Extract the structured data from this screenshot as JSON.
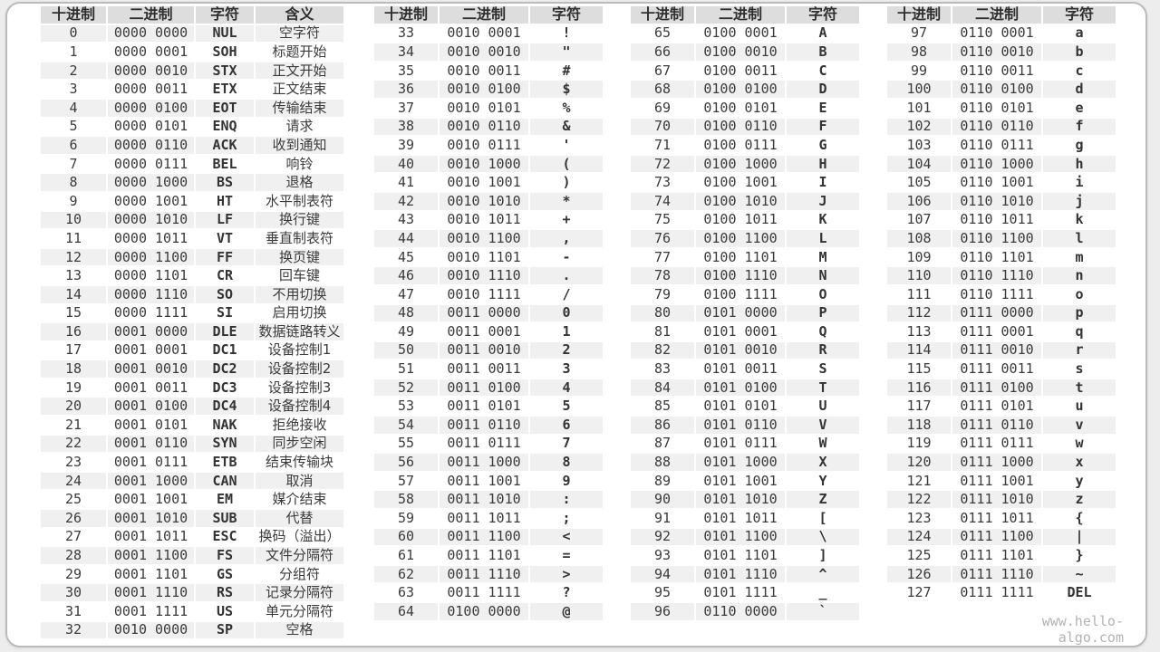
{
  "page": {
    "watermark": "www.hello-algo.com"
  },
  "colors": {
    "outer_background": "#ecedec",
    "panel_background": "#ffffff",
    "panel_border": "#b9bcba",
    "header_background": "#dcdddc",
    "stripe_background": "#f0f0f0",
    "text": "#3b3b3b",
    "watermark_text": "#b3b3b3"
  },
  "chart_data": [
    {
      "type": "table",
      "title": "ASCII 控制字符 0-32",
      "columns": [
        "十进制",
        "二进制",
        "字符",
        "含义"
      ],
      "rows": [
        [
          "0",
          "0000 0000",
          "NUL",
          "空字符"
        ],
        [
          "1",
          "0000 0001",
          "SOH",
          "标题开始"
        ],
        [
          "2",
          "0000 0010",
          "STX",
          "正文开始"
        ],
        [
          "3",
          "0000 0011",
          "ETX",
          "正文结束"
        ],
        [
          "4",
          "0000 0100",
          "EOT",
          "传输结束"
        ],
        [
          "5",
          "0000 0101",
          "ENQ",
          "请求"
        ],
        [
          "6",
          "0000 0110",
          "ACK",
          "收到通知"
        ],
        [
          "7",
          "0000 0111",
          "BEL",
          "响铃"
        ],
        [
          "8",
          "0000 1000",
          "BS",
          "退格"
        ],
        [
          "9",
          "0000 1001",
          "HT",
          "水平制表符"
        ],
        [
          "10",
          "0000 1010",
          "LF",
          "换行键"
        ],
        [
          "11",
          "0000 1011",
          "VT",
          "垂直制表符"
        ],
        [
          "12",
          "0000 1100",
          "FF",
          "换页键"
        ],
        [
          "13",
          "0000 1101",
          "CR",
          "回车键"
        ],
        [
          "14",
          "0000 1110",
          "SO",
          "不用切换"
        ],
        [
          "15",
          "0000 1111",
          "SI",
          "启用切换"
        ],
        [
          "16",
          "0001 0000",
          "DLE",
          "数据链路转义"
        ],
        [
          "17",
          "0001 0001",
          "DC1",
          "设备控制1"
        ],
        [
          "18",
          "0001 0010",
          "DC2",
          "设备控制2"
        ],
        [
          "19",
          "0001 0011",
          "DC3",
          "设备控制3"
        ],
        [
          "20",
          "0001 0100",
          "DC4",
          "设备控制4"
        ],
        [
          "21",
          "0001 0101",
          "NAK",
          "拒绝接收"
        ],
        [
          "22",
          "0001 0110",
          "SYN",
          "同步空闲"
        ],
        [
          "23",
          "0001 0111",
          "ETB",
          "结束传输块"
        ],
        [
          "24",
          "0001 1000",
          "CAN",
          "取消"
        ],
        [
          "25",
          "0001 1001",
          "EM",
          "媒介结束"
        ],
        [
          "26",
          "0001 1010",
          "SUB",
          "代替"
        ],
        [
          "27",
          "0001 1011",
          "ESC",
          "换码（溢出）"
        ],
        [
          "28",
          "0001 1100",
          "FS",
          "文件分隔符"
        ],
        [
          "29",
          "0001 1101",
          "GS",
          "分组符"
        ],
        [
          "30",
          "0001 1110",
          "RS",
          "记录分隔符"
        ],
        [
          "31",
          "0001 1111",
          "US",
          "单元分隔符"
        ],
        [
          "32",
          "0010 0000",
          "SP",
          "空格"
        ]
      ]
    },
    {
      "type": "table",
      "title": "ASCII 33-64",
      "columns": [
        "十进制",
        "二进制",
        "字符"
      ],
      "rows": [
        [
          "33",
          "0010 0001",
          "!"
        ],
        [
          "34",
          "0010 0010",
          "\""
        ],
        [
          "35",
          "0010 0011",
          "#"
        ],
        [
          "36",
          "0010 0100",
          "$"
        ],
        [
          "37",
          "0010 0101",
          "%"
        ],
        [
          "38",
          "0010 0110",
          "&"
        ],
        [
          "39",
          "0010 0111",
          "'"
        ],
        [
          "40",
          "0010 1000",
          "("
        ],
        [
          "41",
          "0010 1001",
          ")"
        ],
        [
          "42",
          "0010 1010",
          "*"
        ],
        [
          "43",
          "0010 1011",
          "+"
        ],
        [
          "44",
          "0010 1100",
          ","
        ],
        [
          "45",
          "0010 1101",
          "-"
        ],
        [
          "46",
          "0010 1110",
          "."
        ],
        [
          "47",
          "0010 1111",
          "/"
        ],
        [
          "48",
          "0011 0000",
          "0"
        ],
        [
          "49",
          "0011 0001",
          "1"
        ],
        [
          "50",
          "0011 0010",
          "2"
        ],
        [
          "51",
          "0011 0011",
          "3"
        ],
        [
          "52",
          "0011 0100",
          "4"
        ],
        [
          "53",
          "0011 0101",
          "5"
        ],
        [
          "54",
          "0011 0110",
          "6"
        ],
        [
          "55",
          "0011 0111",
          "7"
        ],
        [
          "56",
          "0011 1000",
          "8"
        ],
        [
          "57",
          "0011 1001",
          "9"
        ],
        [
          "58",
          "0011 1010",
          ":"
        ],
        [
          "59",
          "0011 1011",
          ";"
        ],
        [
          "60",
          "0011 1100",
          "<"
        ],
        [
          "61",
          "0011 1101",
          "="
        ],
        [
          "62",
          "0011 1110",
          ">"
        ],
        [
          "63",
          "0011 1111",
          "?"
        ],
        [
          "64",
          "0100 0000",
          "@"
        ]
      ]
    },
    {
      "type": "table",
      "title": "ASCII 65-96",
      "columns": [
        "十进制",
        "二进制",
        "字符"
      ],
      "rows": [
        [
          "65",
          "0100 0001",
          "A"
        ],
        [
          "66",
          "0100 0010",
          "B"
        ],
        [
          "67",
          "0100 0011",
          "C"
        ],
        [
          "68",
          "0100 0100",
          "D"
        ],
        [
          "69",
          "0100 0101",
          "E"
        ],
        [
          "70",
          "0100 0110",
          "F"
        ],
        [
          "71",
          "0100 0111",
          "G"
        ],
        [
          "72",
          "0100 1000",
          "H"
        ],
        [
          "73",
          "0100 1001",
          "I"
        ],
        [
          "74",
          "0100 1010",
          "J"
        ],
        [
          "75",
          "0100 1011",
          "K"
        ],
        [
          "76",
          "0100 1100",
          "L"
        ],
        [
          "77",
          "0100 1101",
          "M"
        ],
        [
          "78",
          "0100 1110",
          "N"
        ],
        [
          "79",
          "0100 1111",
          "O"
        ],
        [
          "80",
          "0101 0000",
          "P"
        ],
        [
          "81",
          "0101 0001",
          "Q"
        ],
        [
          "82",
          "0101 0010",
          "R"
        ],
        [
          "83",
          "0101 0011",
          "S"
        ],
        [
          "84",
          "0101 0100",
          "T"
        ],
        [
          "85",
          "0101 0101",
          "U"
        ],
        [
          "86",
          "0101 0110",
          "V"
        ],
        [
          "87",
          "0101 0111",
          "W"
        ],
        [
          "88",
          "0101 1000",
          "X"
        ],
        [
          "89",
          "0101 1001",
          "Y"
        ],
        [
          "90",
          "0101 1010",
          "Z"
        ],
        [
          "91",
          "0101 1011",
          "["
        ],
        [
          "92",
          "0101 1100",
          "\\"
        ],
        [
          "93",
          "0101 1101",
          "]"
        ],
        [
          "94",
          "0101 1110",
          "^"
        ],
        [
          "95",
          "0101 1111",
          "_"
        ],
        [
          "96",
          "0110 0000",
          "`"
        ]
      ]
    },
    {
      "type": "table",
      "title": "ASCII 97-127",
      "columns": [
        "十进制",
        "二进制",
        "字符"
      ],
      "rows": [
        [
          "97",
          "0110 0001",
          "a"
        ],
        [
          "98",
          "0110 0010",
          "b"
        ],
        [
          "99",
          "0110 0011",
          "c"
        ],
        [
          "100",
          "0110 0100",
          "d"
        ],
        [
          "101",
          "0110 0101",
          "e"
        ],
        [
          "102",
          "0110 0110",
          "f"
        ],
        [
          "103",
          "0110 0111",
          "g"
        ],
        [
          "104",
          "0110 1000",
          "h"
        ],
        [
          "105",
          "0110 1001",
          "i"
        ],
        [
          "106",
          "0110 1010",
          "j"
        ],
        [
          "107",
          "0110 1011",
          "k"
        ],
        [
          "108",
          "0110 1100",
          "l"
        ],
        [
          "109",
          "0110 1101",
          "m"
        ],
        [
          "110",
          "0110 1110",
          "n"
        ],
        [
          "111",
          "0110 1111",
          "o"
        ],
        [
          "112",
          "0111 0000",
          "p"
        ],
        [
          "113",
          "0111 0001",
          "q"
        ],
        [
          "114",
          "0111 0010",
          "r"
        ],
        [
          "115",
          "0111 0011",
          "s"
        ],
        [
          "116",
          "0111 0100",
          "t"
        ],
        [
          "117",
          "0111 0101",
          "u"
        ],
        [
          "118",
          "0111 0110",
          "v"
        ],
        [
          "119",
          "0111 0111",
          "w"
        ],
        [
          "120",
          "0111 1000",
          "x"
        ],
        [
          "121",
          "0111 1001",
          "y"
        ],
        [
          "122",
          "0111 1010",
          "z"
        ],
        [
          "123",
          "0111 1011",
          "{"
        ],
        [
          "124",
          "0111 1100",
          "|"
        ],
        [
          "125",
          "0111 1101",
          "}"
        ],
        [
          "126",
          "0111 1110",
          "~"
        ],
        [
          "127",
          "0111 1111",
          "DEL"
        ]
      ]
    }
  ]
}
